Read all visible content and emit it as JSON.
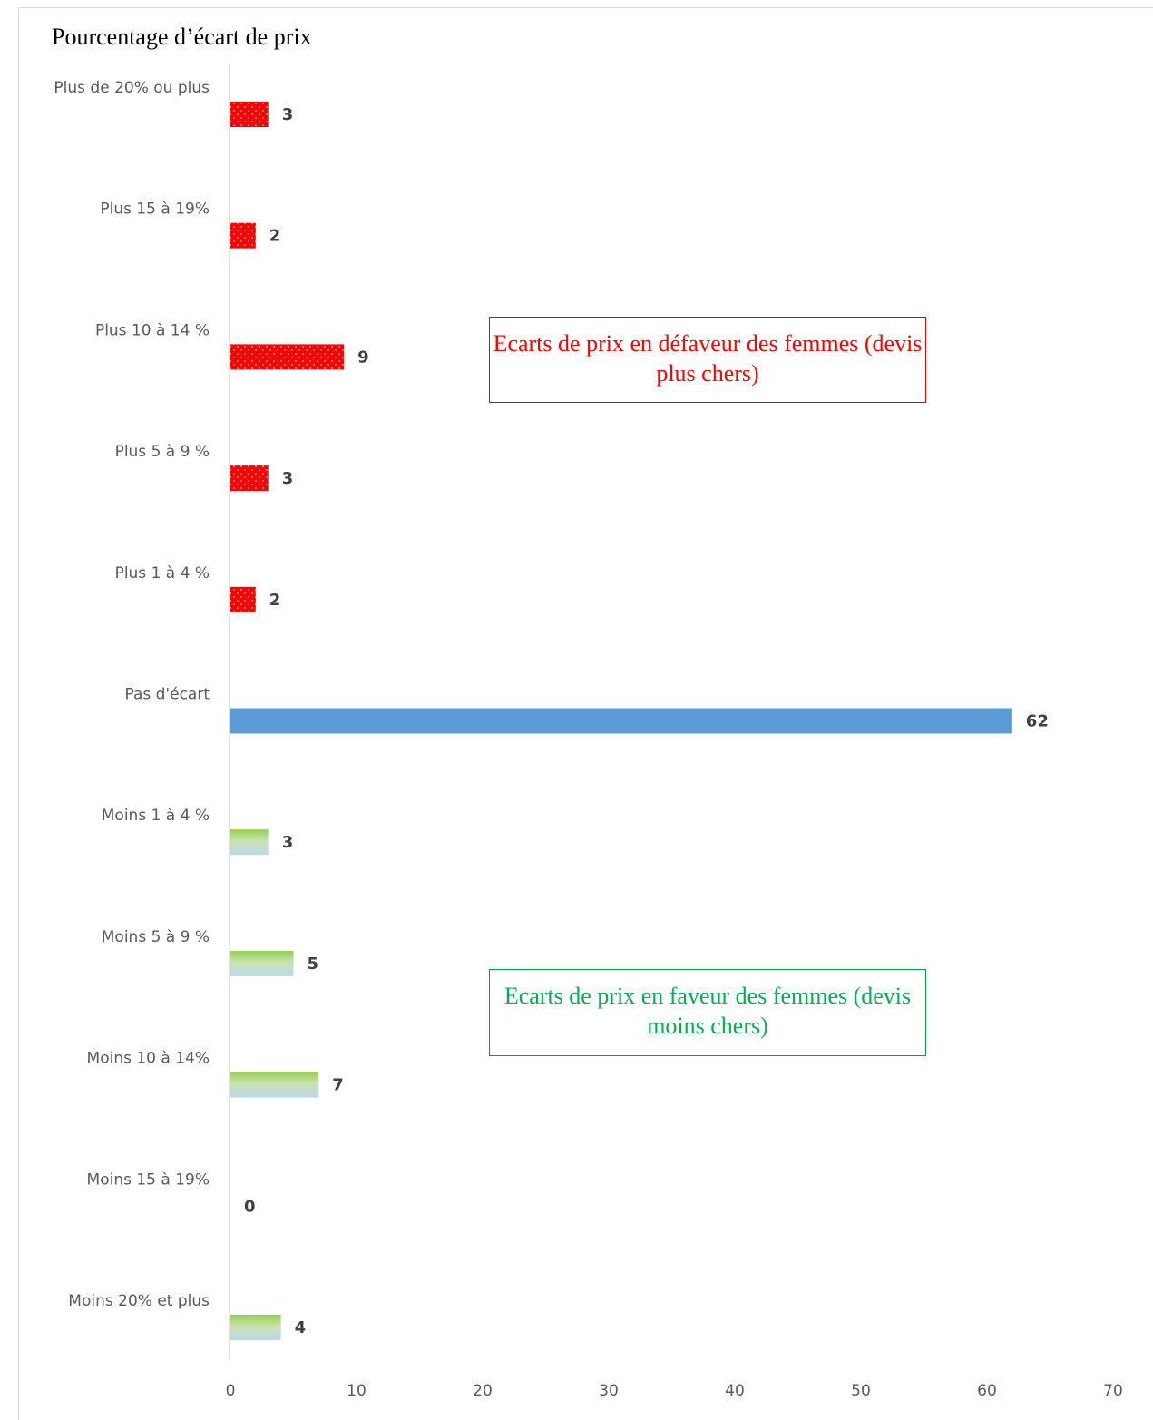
{
  "chart_data": {
    "type": "bar",
    "orientation": "horizontal",
    "title": "Pourcentage d’écart de prix",
    "categories": [
      "Plus de 20% ou plus",
      "Plus 15 à 19%",
      "Plus 10 à 14 %",
      "Plus 5 à 9 %",
      "Plus 1 à 4 %",
      "Pas d'écart",
      "Moins 1 à 4 %",
      "Moins 5 à 9 %",
      "Moins 10 à 14%",
      "Moins 15 à 19%",
      "Moins 20% et plus"
    ],
    "values": [
      3,
      2,
      9,
      3,
      2,
      62,
      3,
      5,
      7,
      0,
      4
    ],
    "bar_groups": [
      "plus",
      "plus",
      "plus",
      "plus",
      "plus",
      "neutral",
      "moins",
      "moins",
      "moins",
      "moins",
      "moins"
    ],
    "xlim": [
      0,
      70
    ],
    "xticks": [
      0,
      10,
      20,
      30,
      40,
      50,
      60,
      70
    ],
    "grid": false,
    "legend": "none",
    "colors": {
      "plus": "#ff0000",
      "neutral": "#5b9bd5",
      "moins_top": "#92d050",
      "moins_bottom": "#bdd7ee",
      "axis": "#d9d9d9"
    },
    "annotations": [
      {
        "text": "Ecarts de prix en défaveur des femmes (devis plus chers)",
        "color": "#ff0000"
      },
      {
        "text": "Ecarts de prix en faveur des femmes (devis moins chers)",
        "color": "#00b050"
      }
    ]
  }
}
